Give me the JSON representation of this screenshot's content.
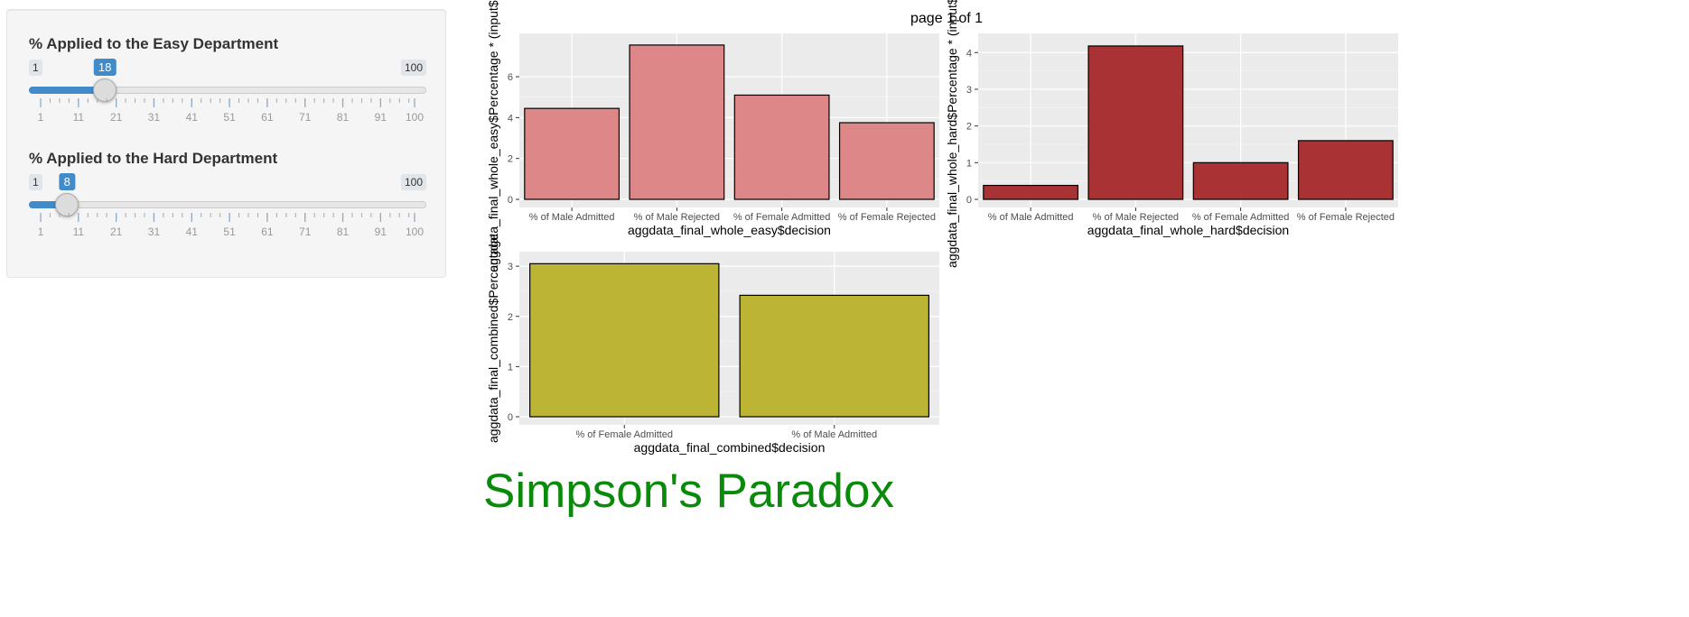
{
  "sidebar": {
    "easy": {
      "label": "% Applied to the Easy Department",
      "min": "1",
      "max": "100",
      "value": "18",
      "value_num": 18,
      "ticks": [
        "1",
        "11",
        "21",
        "31",
        "41",
        "51",
        "61",
        "71",
        "81",
        "91",
        "100"
      ]
    },
    "hard": {
      "label": "% Applied to the Hard Department",
      "min": "1",
      "max": "100",
      "value": "8",
      "value_num": 8,
      "ticks": [
        "1",
        "11",
        "21",
        "31",
        "41",
        "51",
        "61",
        "71",
        "81",
        "91",
        "100"
      ]
    }
  },
  "page_label": "page 1 of 1",
  "app_title": "Simpson's Paradox",
  "colors": {
    "easy": "#dd8789",
    "hard": "#a83234",
    "combined": "#bcb434",
    "slider": "#428bca",
    "title": "#0a8a0a"
  },
  "chart_data": [
    {
      "type": "bar",
      "categories": [
        "% of Male Admitted",
        "% of Male Rejected",
        "% of Female Admitted",
        "% of Female Rejected"
      ],
      "values": [
        4.45,
        7.55,
        5.1,
        3.75
      ],
      "xlabel": "aggdata_final_whole_easy$decision",
      "ylabel": "aggdata_final_whole_easy$Percentage * (input$perce",
      "ylim": [
        0,
        7.9
      ],
      "yticks": [
        0,
        2,
        4,
        6
      ],
      "grid": true
    },
    {
      "type": "bar",
      "categories": [
        "% of Male Admitted",
        "% of Male Rejected",
        "% of Female Admitted",
        "% of Female Rejected"
      ],
      "values": [
        0.38,
        4.18,
        1.0,
        1.6
      ],
      "xlabel": "aggdata_final_whole_hard$decision",
      "ylabel": "aggdata_final_whole_hard$Percentage * (input$perc",
      "ylim": [
        0,
        4.4
      ],
      "yticks": [
        0,
        1,
        2,
        3,
        4
      ],
      "grid": true
    },
    {
      "type": "bar",
      "categories": [
        "% of Female Admitted",
        "% of Male Admitted"
      ],
      "values": [
        3.05,
        2.42
      ],
      "xlabel": "aggdata_final_combined$decision",
      "ylabel": "aggdata_final_combined$Percentage",
      "ylim": [
        0,
        3.2
      ],
      "yticks": [
        0,
        1,
        2,
        3
      ],
      "grid": true
    }
  ]
}
